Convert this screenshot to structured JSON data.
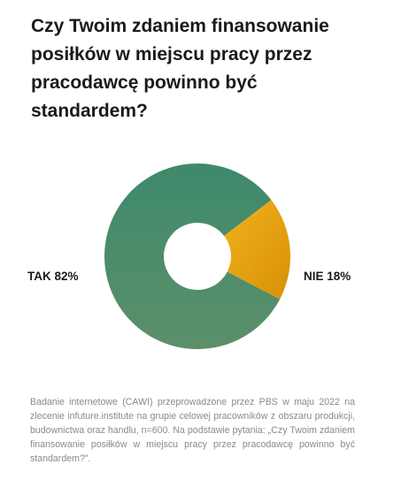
{
  "title": "Czy Twoim zdaniem finansowanie posiłków w miejscu pracy przez pracodawcę powinno być standardem?",
  "chart_data": {
    "type": "pie",
    "donut": true,
    "categories": [
      "TAK",
      "NIE"
    ],
    "values": [
      82,
      18
    ],
    "colors": [
      "#4f8a6b",
      "#e0a010"
    ],
    "labels": [
      "TAK 82%",
      "NIE 18%"
    ]
  },
  "footnote": "Badanie internetowe (CAWI) przeprowadzone przez PBS w maju 2022 na zlecenie infuture.institute na grupie celowej pracowników z obszaru produkcji, budownictwa oraz handlu, n=600. Na podstawie pytania: „Czy Twoim zdaniem finansowanie posiłków w miejscu pracy przez pracodawcę powinno być standardem?”."
}
